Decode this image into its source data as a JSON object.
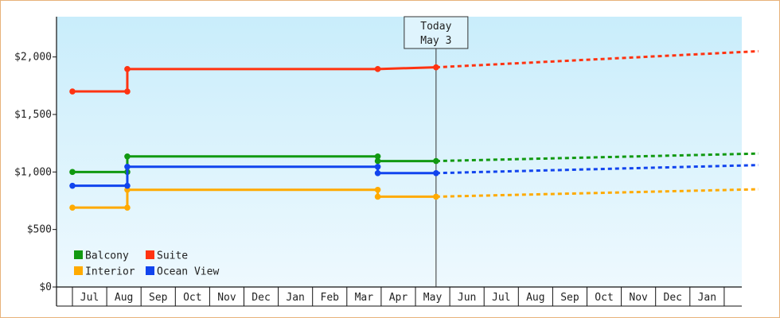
{
  "chart_data": {
    "type": "line",
    "title": "",
    "xlabel": "",
    "ylabel": "",
    "ylim": [
      0,
      2350
    ],
    "y_ticks": [
      {
        "value": 0,
        "label": "$0"
      },
      {
        "value": 500,
        "label": "$500"
      },
      {
        "value": 1000,
        "label": "$1,000"
      },
      {
        "value": 1500,
        "label": "$1,500"
      },
      {
        "value": 2000,
        "label": "$2,000"
      }
    ],
    "x_tick_labels": [
      "Jul",
      "Aug",
      "Sep",
      "Oct",
      "Nov",
      "Dec",
      "Jan",
      "Feb",
      "Mar",
      "Apr",
      "May",
      "Jun",
      "Jul",
      "Aug",
      "Sep",
      "Oct",
      "Nov",
      "Dec",
      "Jan"
    ],
    "today_marker": {
      "line1": "Today",
      "line2": "May 3",
      "month_index": 10.1
    },
    "legend": {
      "placement": "bottom-left",
      "items": [
        "Balcony",
        "Suite",
        "Interior",
        "Ocean View"
      ]
    },
    "series": [
      {
        "name": "Balcony",
        "color": "#119911",
        "steps": [
          [
            -0.5,
            1000
          ],
          [
            1.1,
            1000
          ],
          [
            1.1,
            1135
          ],
          [
            8.4,
            1135
          ],
          [
            8.4,
            1095
          ],
          [
            10.1,
            1095
          ]
        ],
        "markers": [
          [
            -0.5,
            1000
          ],
          [
            1.1,
            1000
          ],
          [
            1.1,
            1135
          ],
          [
            8.4,
            1135
          ],
          [
            8.4,
            1095
          ],
          [
            10.1,
            1095
          ]
        ],
        "forecast": [
          [
            10.1,
            1095
          ],
          [
            19.5,
            1160
          ]
        ]
      },
      {
        "name": "Suite",
        "color": "#ff3311",
        "steps": [
          [
            -0.5,
            1700
          ],
          [
            1.1,
            1700
          ],
          [
            1.1,
            1895
          ],
          [
            8.4,
            1895
          ],
          [
            10.1,
            1910
          ]
        ],
        "markers": [
          [
            -0.5,
            1700
          ],
          [
            1.1,
            1700
          ],
          [
            1.1,
            1895
          ],
          [
            8.4,
            1895
          ],
          [
            10.1,
            1910
          ]
        ],
        "forecast": [
          [
            10.1,
            1910
          ],
          [
            19.5,
            2050
          ]
        ]
      },
      {
        "name": "Interior",
        "color": "#ffaa00",
        "steps": [
          [
            -0.5,
            690
          ],
          [
            1.1,
            690
          ],
          [
            1.1,
            845
          ],
          [
            8.4,
            845
          ],
          [
            8.4,
            785
          ],
          [
            10.1,
            785
          ]
        ],
        "markers": [
          [
            -0.5,
            690
          ],
          [
            1.1,
            690
          ],
          [
            1.1,
            845
          ],
          [
            8.4,
            845
          ],
          [
            8.4,
            785
          ],
          [
            10.1,
            785
          ]
        ],
        "forecast": [
          [
            10.1,
            785
          ],
          [
            19.5,
            850
          ]
        ]
      },
      {
        "name": "Ocean View",
        "color": "#1144ee",
        "steps": [
          [
            -0.5,
            880
          ],
          [
            1.1,
            880
          ],
          [
            1.1,
            1045
          ],
          [
            8.4,
            1045
          ],
          [
            8.4,
            990
          ],
          [
            10.1,
            990
          ]
        ],
        "markers": [
          [
            -0.5,
            880
          ],
          [
            1.1,
            880
          ],
          [
            1.1,
            1045
          ],
          [
            8.4,
            1045
          ],
          [
            8.4,
            990
          ],
          [
            10.1,
            990
          ]
        ],
        "forecast": [
          [
            10.1,
            990
          ],
          [
            19.5,
            1060
          ]
        ]
      }
    ]
  }
}
